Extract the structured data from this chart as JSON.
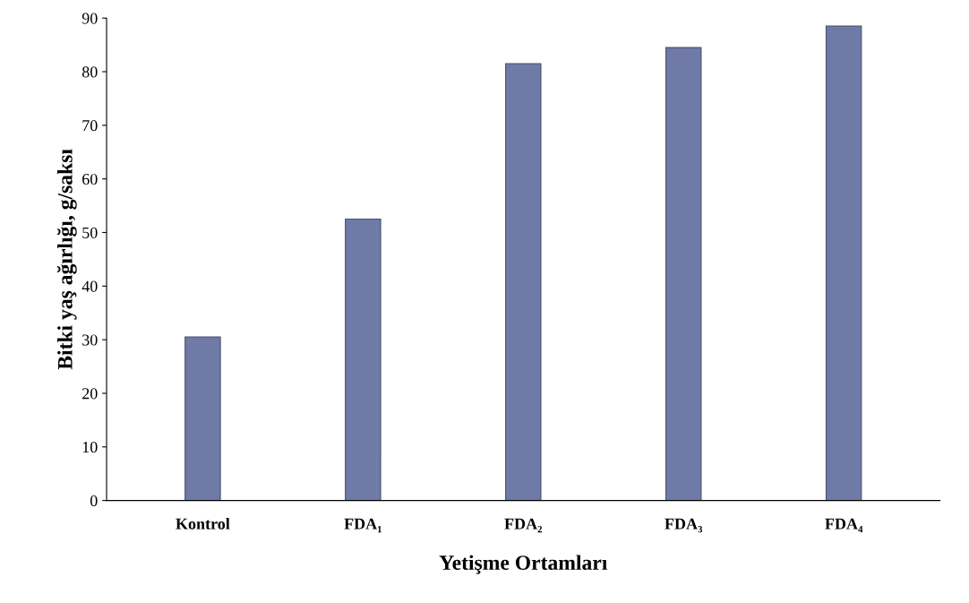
{
  "chart_data": {
    "type": "bar",
    "xlabel": "Yetişme Ortamları",
    "ylabel": "Bitki yaş ağırlığı, g/saksı",
    "categories": [
      "Kontrol",
      "FDA₁",
      "FDA₂",
      "FDA₃",
      "FDA₄"
    ],
    "values": [
      30.5,
      52.5,
      81.5,
      84.5,
      88.5
    ],
    "color": "#6f7aa6",
    "ylim": [
      0,
      90
    ],
    "yticks": [
      0,
      10,
      20,
      30,
      40,
      50,
      60,
      70,
      80,
      90
    ],
    "grid": false
  }
}
